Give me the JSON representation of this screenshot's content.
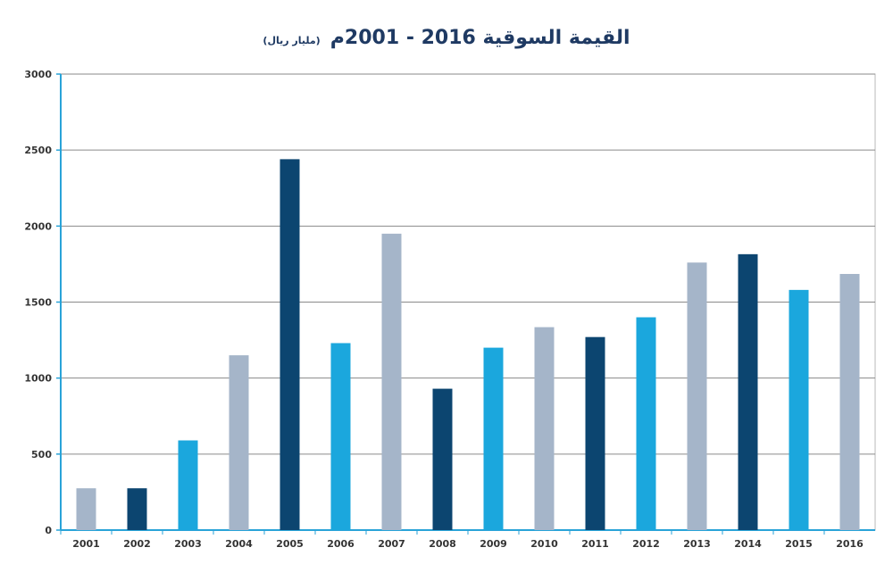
{
  "chart_data": {
    "type": "bar",
    "title": "القيمة السوقية 2016 - 2001م",
    "unit": "(مليار ريال)",
    "xlabel": "",
    "ylabel": "",
    "ylim": [
      0,
      3000
    ],
    "yticks": [
      0,
      500,
      1000,
      1500,
      2000,
      2500,
      3000
    ],
    "grid": true,
    "categories": [
      "2001",
      "2002",
      "2003",
      "2004",
      "2005",
      "2006",
      "2007",
      "2008",
      "2009",
      "2010",
      "2011",
      "2012",
      "2013",
      "2014",
      "2015",
      "2016"
    ],
    "values": [
      275,
      275,
      590,
      1150,
      2440,
      1230,
      1950,
      930,
      1200,
      1335,
      1270,
      1400,
      1760,
      1815,
      1580,
      1685
    ],
    "colors": [
      "#a5b5c9",
      "#0c4570",
      "#1ba7dd",
      "#a5b5c9",
      "#0c4570",
      "#1ba7dd",
      "#a5b5c9",
      "#0c4570",
      "#1ba7dd",
      "#a5b5c9",
      "#0c4570",
      "#1ba7dd",
      "#a5b5c9",
      "#0c4570",
      "#1ba7dd",
      "#a5b5c9"
    ]
  }
}
